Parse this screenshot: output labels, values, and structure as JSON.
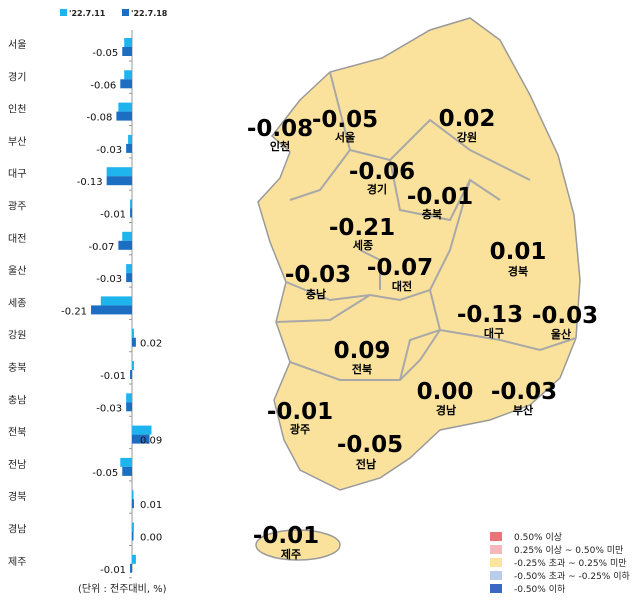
{
  "chart_data": [
    {
      "type": "bar",
      "orientation": "horizontal",
      "categories": [
        "서울",
        "경기",
        "인천",
        "부산",
        "대구",
        "광주",
        "대전",
        "울산",
        "세종",
        "강원",
        "충북",
        "충남",
        "전북",
        "전남",
        "경북",
        "경남",
        "제주"
      ],
      "series": [
        {
          "name": "'22.7.11",
          "color": "#1EB4EE",
          "values": [
            -0.04,
            -0.04,
            -0.07,
            -0.02,
            -0.13,
            -0.01,
            -0.05,
            -0.03,
            -0.16,
            0.01,
            0.01,
            -0.03,
            0.1,
            -0.06,
            0.0,
            0.01,
            0.02
          ]
        },
        {
          "name": "'22.7.18",
          "color": "#1C6EC2",
          "values": [
            -0.05,
            -0.06,
            -0.08,
            -0.03,
            -0.13,
            -0.01,
            -0.07,
            -0.03,
            -0.21,
            0.02,
            -0.01,
            -0.03,
            0.09,
            -0.05,
            0.01,
            0.0,
            -0.01
          ]
        }
      ],
      "data_labels": [
        "-0.05",
        "-0.06",
        "-0.08",
        "-0.03",
        "-0.13",
        "-0.01",
        "-0.07",
        "-0.03",
        "-0.21",
        "0.02",
        "-0.01",
        "-0.03",
        "0.09",
        "-0.05",
        "0.01",
        "0.00",
        "-0.01"
      ],
      "legend_position": "top",
      "note": "(단위 : 전주대비, %)"
    },
    {
      "type": "choropleth-map",
      "regions": [
        {
          "name": "인천",
          "value": "-0.08"
        },
        {
          "name": "서울",
          "value": "-0.05"
        },
        {
          "name": "강원",
          "value": "0.02"
        },
        {
          "name": "경기",
          "value": "-0.06"
        },
        {
          "name": "충북",
          "value": "-0.01"
        },
        {
          "name": "세종",
          "value": "-0.21"
        },
        {
          "name": "대전",
          "value": "-0.07"
        },
        {
          "name": "충남",
          "value": "-0.03"
        },
        {
          "name": "경북",
          "value": "0.01"
        },
        {
          "name": "대구",
          "value": "-0.13"
        },
        {
          "name": "울산",
          "value": "-0.03"
        },
        {
          "name": "전북",
          "value": "0.09"
        },
        {
          "name": "경남",
          "value": "0.00"
        },
        {
          "name": "부산",
          "value": "-0.03"
        },
        {
          "name": "광주",
          "value": "-0.01"
        },
        {
          "name": "전남",
          "value": "-0.05"
        },
        {
          "name": "제주",
          "value": "-0.01"
        }
      ],
      "map_fill": "#FBE29C",
      "legend": [
        {
          "label": "0.50% 이상",
          "color": "#E8747A"
        },
        {
          "label": "0.25% 이상 ~ 0.50% 미만",
          "color": "#F4B8BC"
        },
        {
          "label": "-0.25% 초과 ~ 0.25% 미만",
          "color": "#FCE49E"
        },
        {
          "label": "-0.50% 초과 ~ -0.25% 이하",
          "color": "#B9CDEB"
        },
        {
          "label": "-0.50% 이하",
          "color": "#3A66C4"
        }
      ]
    }
  ]
}
